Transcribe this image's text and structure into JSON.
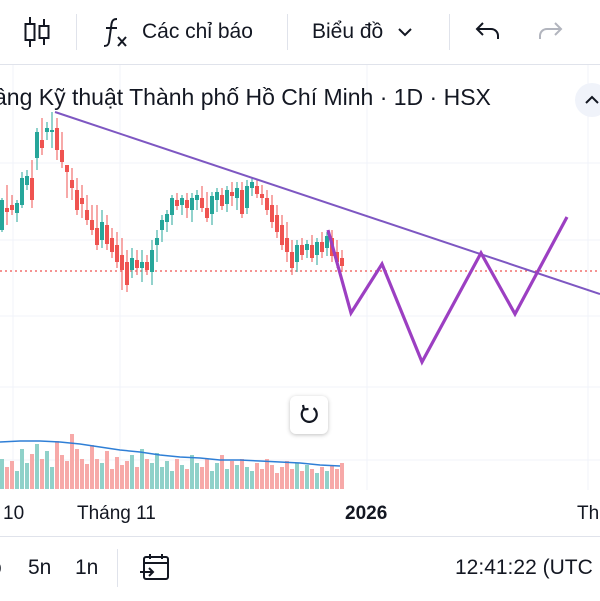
{
  "toolbar": {
    "indicators_label": "Các chỉ báo",
    "chart_type_label": "Biểu đồ"
  },
  "chart_title": "ầng Kỹ thuật Thành phố Hồ Chí Minh · 1D · HSX",
  "time_axis": {
    "labels": [
      "10",
      "Tháng 11",
      "2026",
      "Th"
    ]
  },
  "bottom_bar": {
    "ranges": [
      "o",
      "5n",
      "1n"
    ],
    "clock": "12:41:22 (UTC"
  },
  "colors": {
    "up": "#26a69a",
    "down": "#ef5350",
    "up_volume": "#8fd1c9",
    "down_volume": "#f7a9a8",
    "trendline": "#7e57c2",
    "projection": "#9c3fc2",
    "volume_ma": "#2f7fd6",
    "price_line": "#ef5350"
  }
}
